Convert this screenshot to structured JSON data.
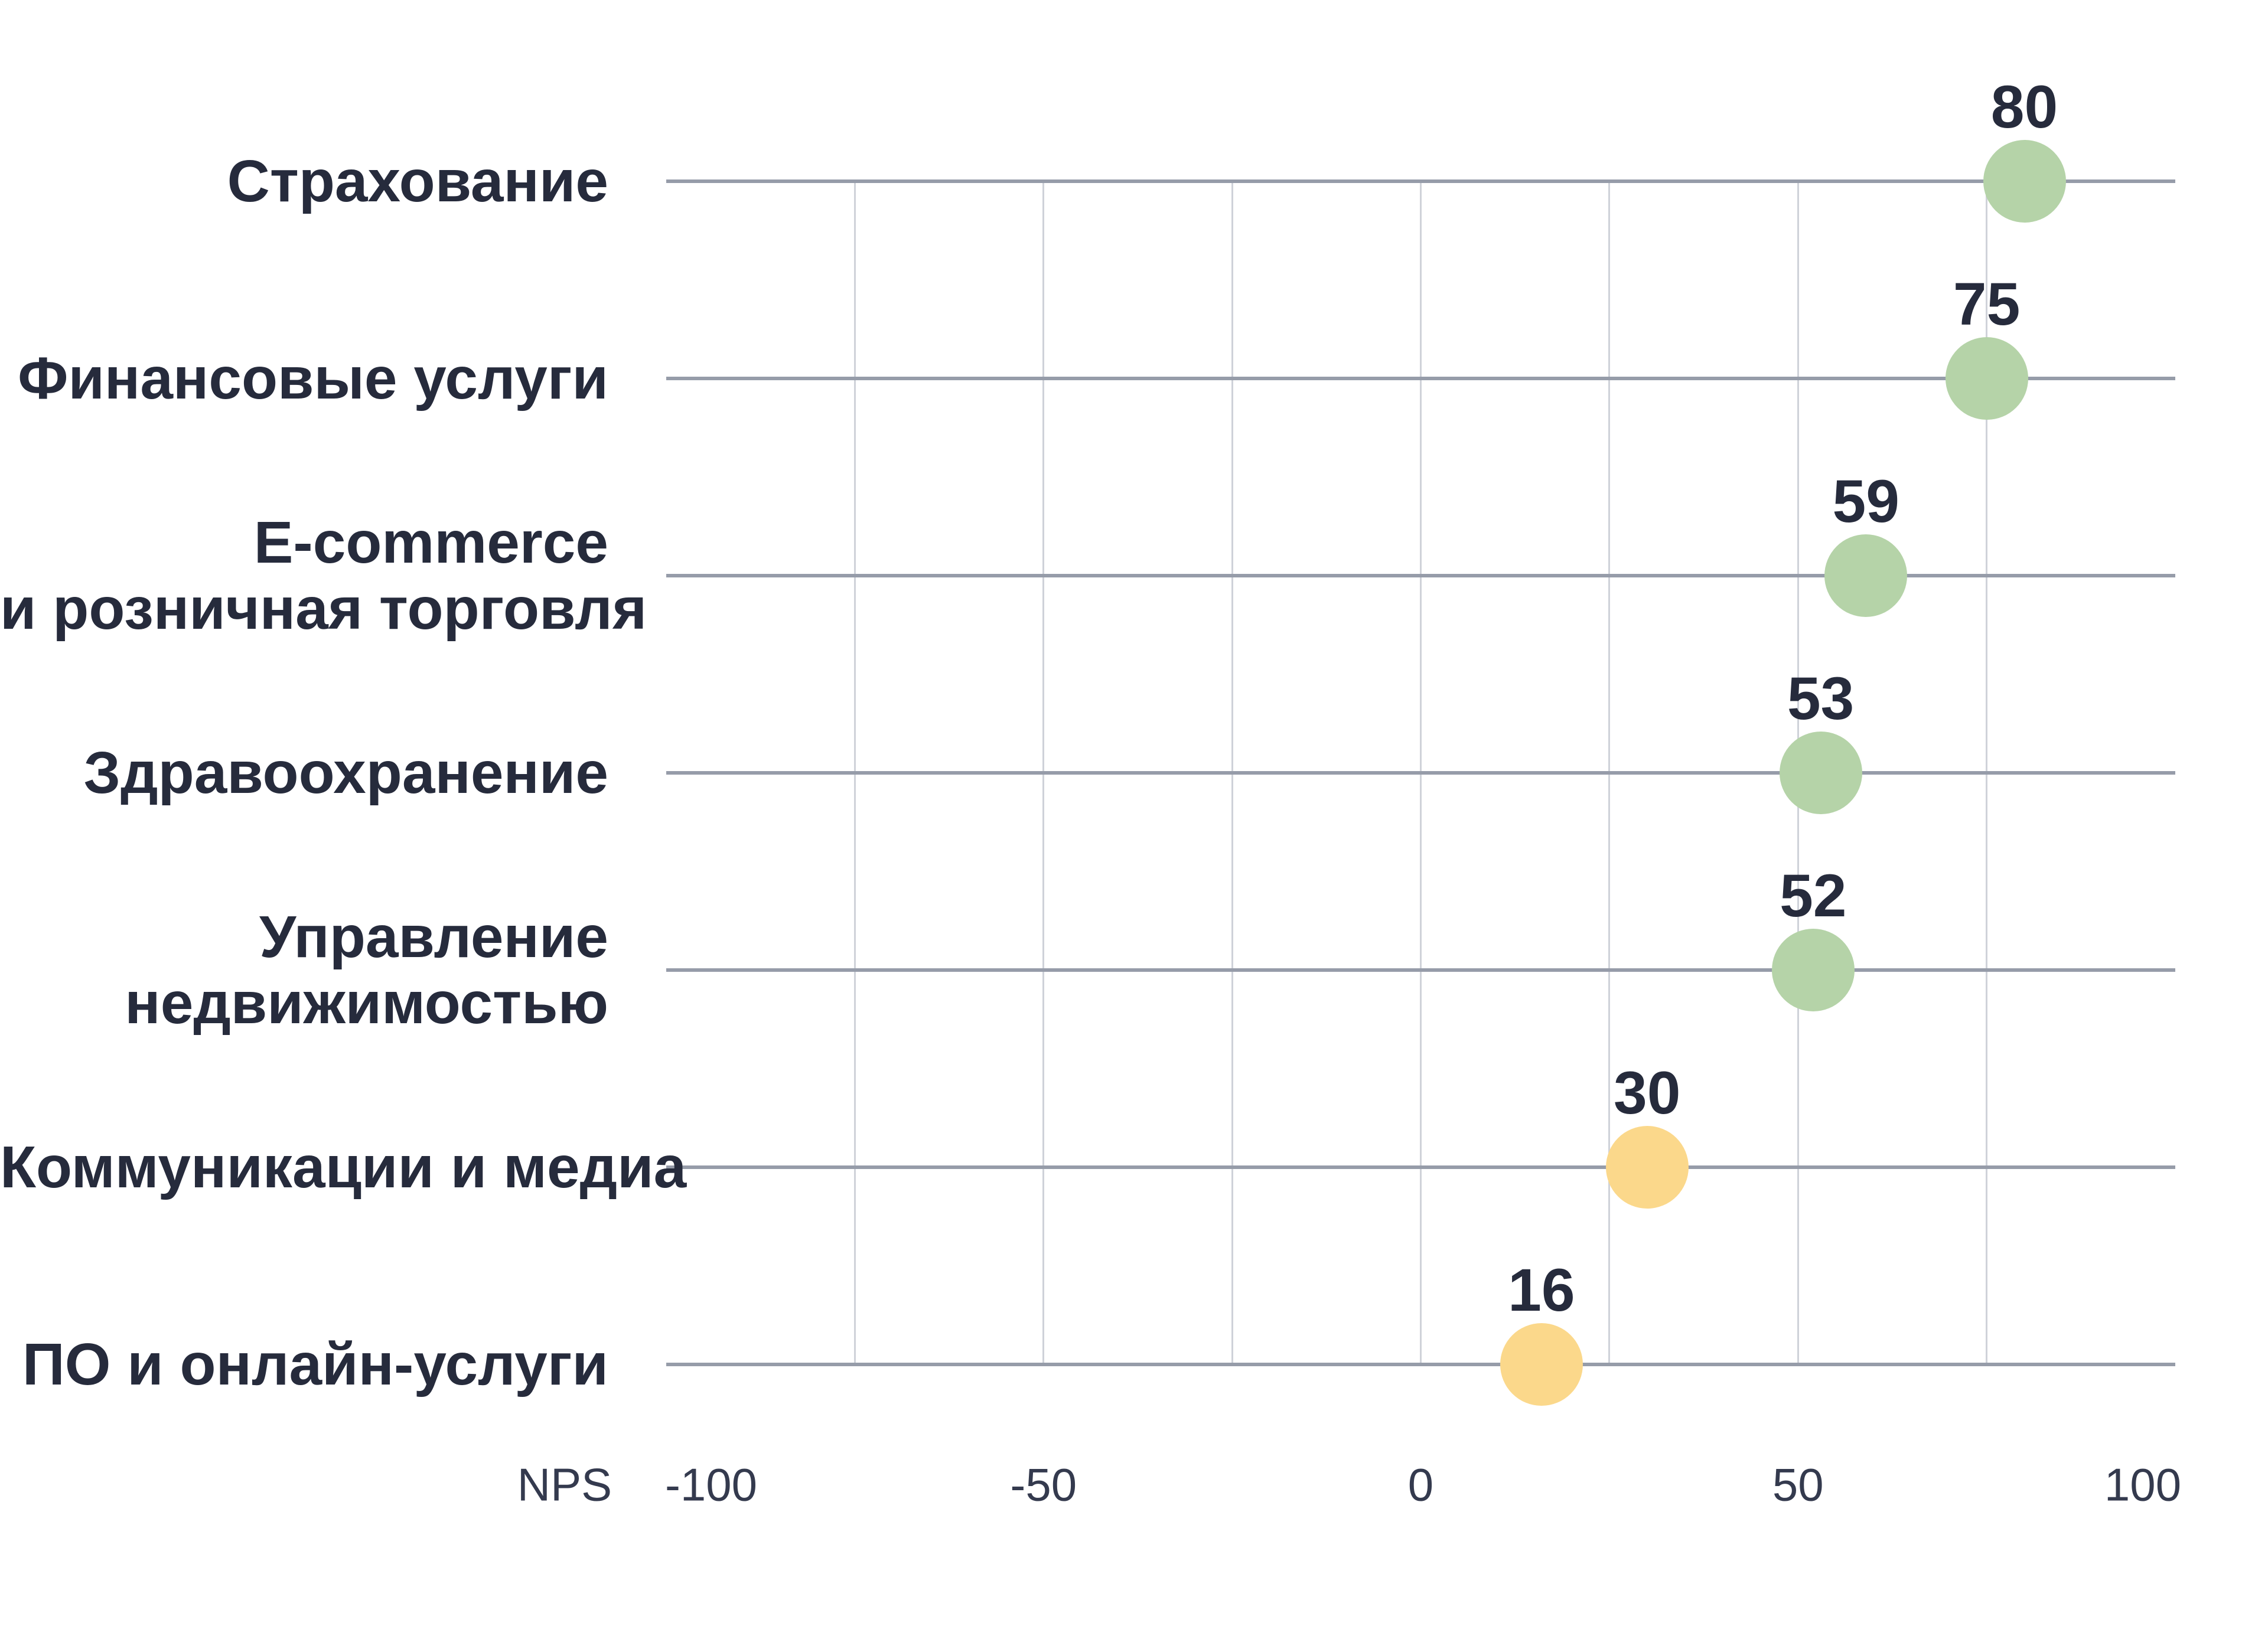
{
  "chart_data": {
    "type": "scatter",
    "variant": "horizontal-dot-plot",
    "title": "",
    "xlabel": "NPS",
    "ylabel": "",
    "xlim": [
      -100,
      100
    ],
    "x_ticks": [
      -100,
      -50,
      0,
      50,
      100
    ],
    "gridlines_x": [
      -75,
      -50,
      -25,
      0,
      25,
      50,
      75
    ],
    "grid": "vertical-only",
    "legend": "none",
    "categories": [
      "Страхование",
      "Финансовые услуги",
      "E-commerce и розничная торговля",
      "Здравоохранение",
      "Управление недвижимостью",
      "Коммуникации и медиа",
      "ПО и онлайн-услуги"
    ],
    "values": [
      80,
      75,
      59,
      53,
      52,
      30,
      16
    ],
    "point_colors": [
      "green",
      "green",
      "green",
      "green",
      "green",
      "yellow",
      "yellow"
    ]
  },
  "rows": [
    {
      "label_lines": [
        "Страхование"
      ],
      "value": "80",
      "color": "green"
    },
    {
      "label_lines": [
        "Финансовые услуги"
      ],
      "value": "75",
      "color": "green"
    },
    {
      "label_lines": [
        "E-commerce",
        "и розничная торговля"
      ],
      "value": "59",
      "color": "green"
    },
    {
      "label_lines": [
        "Здравоохранение"
      ],
      "value": "53",
      "color": "green"
    },
    {
      "label_lines": [
        "Управление",
        "недвижимостью"
      ],
      "value": "52",
      "color": "green"
    },
    {
      "label_lines": [
        "Коммуникации и медиа"
      ],
      "value": "30",
      "color": "yellow"
    },
    {
      "label_lines": [
        "ПО и онлайн-услуги"
      ],
      "value": "16",
      "color": "yellow"
    }
  ],
  "axis": {
    "title": "NPS",
    "tick_labels": [
      "-100",
      "-50",
      "0",
      "50",
      "100"
    ]
  },
  "palette": {
    "green": "#b5d3a8",
    "yellow": "#fbd88b",
    "text_dark": "#262b3c",
    "axis_text": "#343a4e",
    "row_line": "#969ca9",
    "gridline": "#cfd2d9",
    "background": "#ffffff"
  }
}
